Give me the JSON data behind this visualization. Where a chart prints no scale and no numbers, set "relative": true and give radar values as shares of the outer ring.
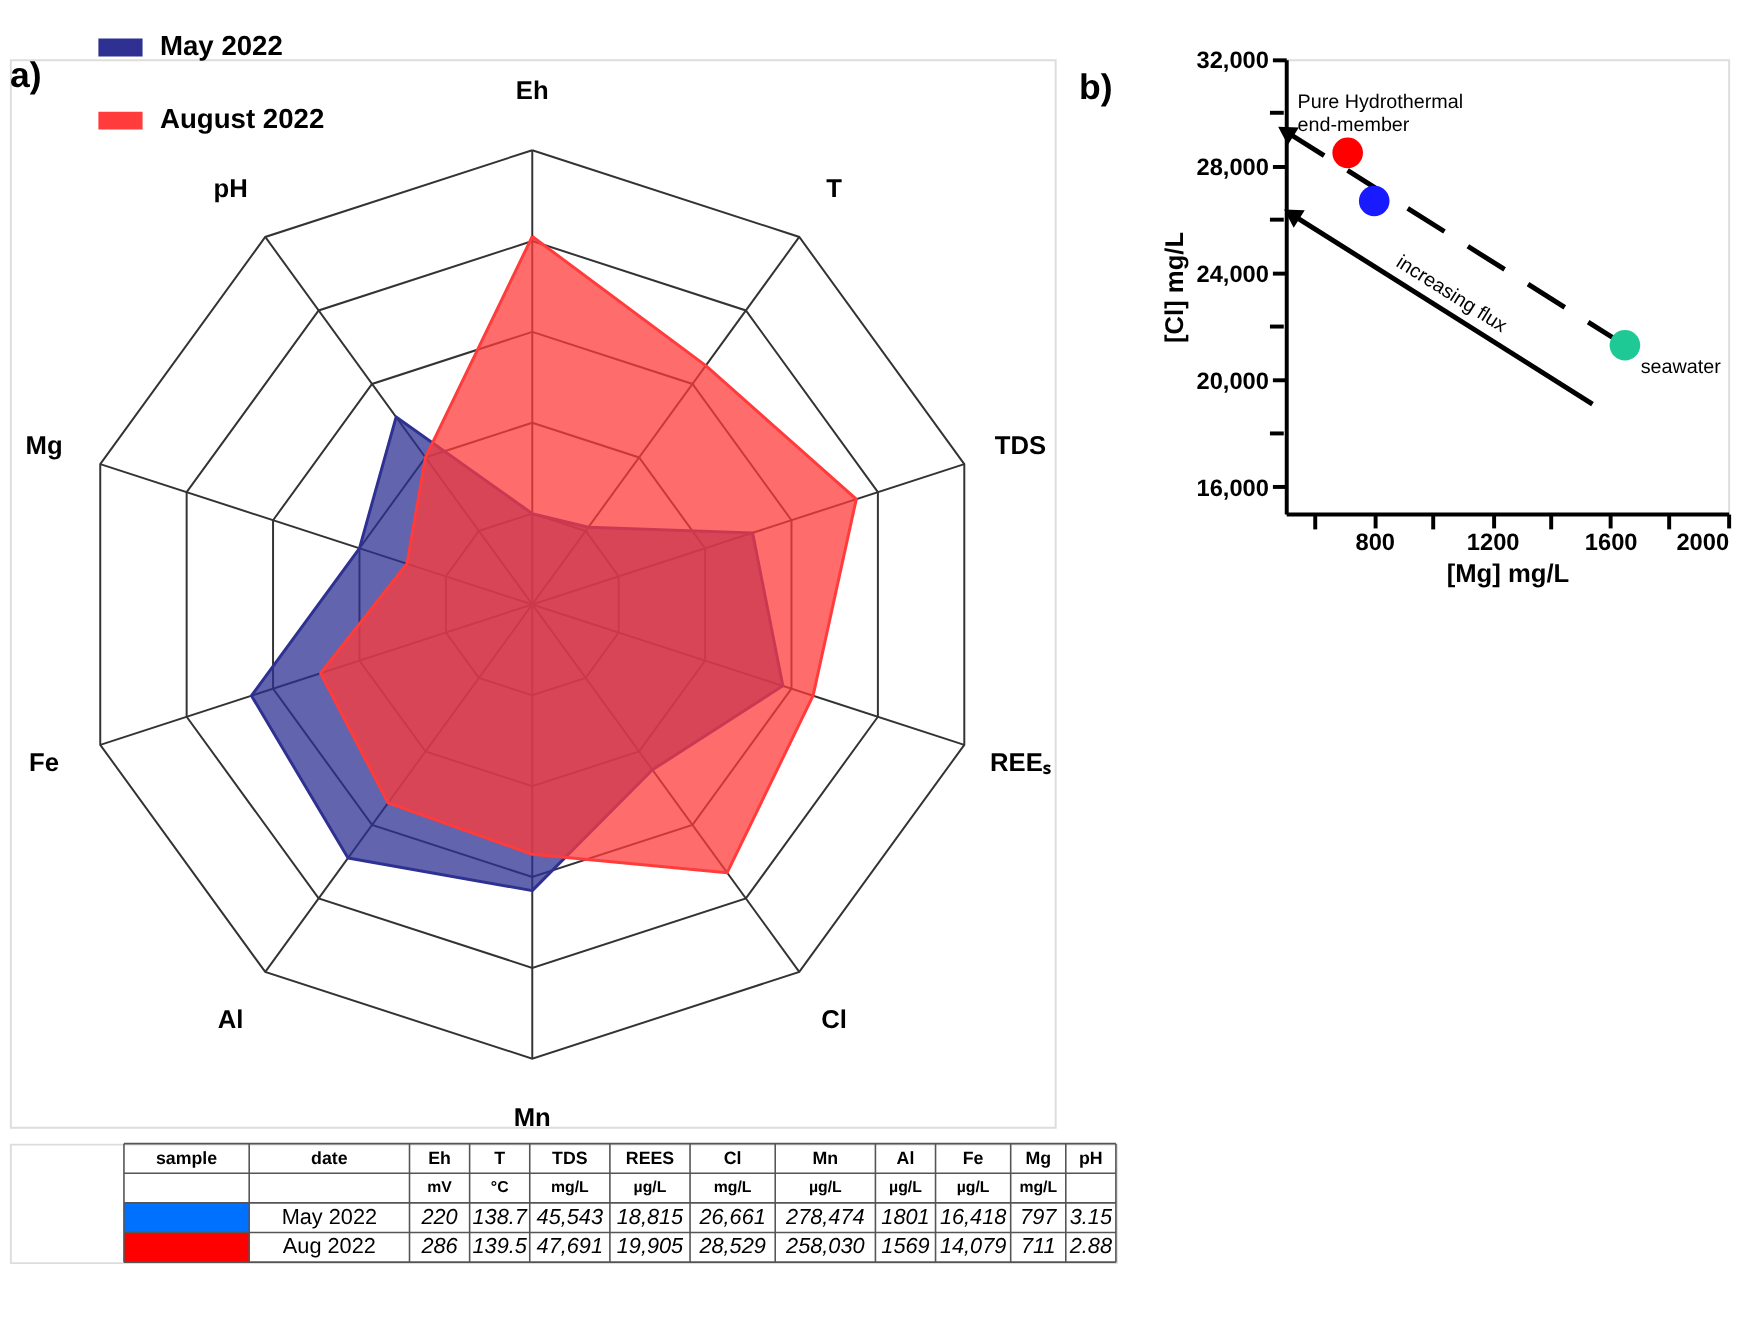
{
  "chart_data": [
    {
      "type": "radar",
      "title": "a)",
      "relative": true,
      "grid": true,
      "legend": "top left",
      "categories": [
        "Eh",
        "T",
        "TDS",
        "REEₛ",
        "Cl",
        "Mn",
        "Al",
        "Fe",
        "Mg",
        "pH"
      ],
      "series": [
        {
          "name": "May 2022",
          "color": "#2e3192",
          "values": [
            0.2,
            0.21,
            0.51,
            0.58,
            0.45,
            0.63,
            0.69,
            0.65,
            0.4,
            0.51
          ]
        },
        {
          "name": "August 2022",
          "color": "#ff3b3b",
          "values": [
            0.81,
            0.65,
            0.75,
            0.65,
            0.73,
            0.55,
            0.54,
            0.49,
            0.29,
            0.4
          ]
        }
      ]
    },
    {
      "type": "scatter",
      "title": "b)",
      "xlabel": "[Mg] mg/L",
      "ylabel": "[Cl] mg/L",
      "grid": false,
      "xlim": [
        500,
        2000
      ],
      "ylim": [
        15000,
        32000
      ],
      "xticks": [
        {
          "value": 600,
          "label": null
        },
        800,
        {
          "value": 1000,
          "label": null
        },
        1200,
        {
          "value": 1400,
          "label": null
        },
        1600,
        {
          "value": 1800,
          "label": null
        },
        2000
      ],
      "yticks": [
        {
          "value": 16000,
          "label": "16,000"
        },
        {
          "value": 18000,
          "label": null
        },
        {
          "value": 20000,
          "label": "20,000"
        },
        {
          "value": 22000,
          "label": null
        },
        {
          "value": 24000,
          "label": "24,000"
        },
        {
          "value": 26000,
          "label": null
        },
        {
          "value": 28000,
          "label": "28,000"
        },
        {
          "value": 30000,
          "label": null
        },
        {
          "value": 32000,
          "label": "32,000"
        }
      ],
      "series": [
        {
          "type": "line",
          "x": [
            1650,
            500
          ],
          "values": [
            21300,
            29300
          ],
          "color": "#000000",
          "line_style": "dashed"
        },
        {
          "type": "line",
          "x": [
            1540,
            520
          ],
          "values": [
            19100,
            26200
          ],
          "color": "#000000",
          "line_style": "solid"
        },
        {
          "type": "scatter",
          "x": [
            710,
            800,
            1650
          ],
          "values": [
            28500,
            26700,
            21300
          ],
          "colors": [
            "#ff0000",
            "#1a1aff",
            "#1fc996"
          ]
        }
      ],
      "annotations": [
        {
          "text": "Pure Hydrothermal end-member",
          "x": 500,
          "y": 29300
        },
        "increasing flux",
        {
          "text": "seawater",
          "x": 1650,
          "y": 21300
        }
      ]
    },
    {
      "type": "other",
      "categories": [
        "sample",
        "date",
        "Eh",
        "T",
        "TDS",
        "REES",
        "Cl",
        "Mn",
        "Al",
        "Fe",
        "Mg",
        "pH"
      ],
      "cell_labels": [
        [
          null,
          null,
          "mV",
          "°C",
          "mg/L",
          "µg/L",
          "mg/L",
          "µg/L",
          "µg/L",
          "µg/L",
          "mg/L",
          null
        ],
        [
          null,
          "May 2022",
          "220",
          "138.7",
          "45,543",
          "18,815",
          "26,661",
          "278,474",
          "1801",
          "16,418",
          "797",
          "3.15"
        ],
        [
          null,
          "Aug 2022",
          "286",
          "139.5",
          "47,691",
          "19,905",
          "28,529",
          "258,030",
          "1569",
          "14,079",
          "711",
          "2.88"
        ]
      ],
      "colors": [
        null,
        "#0070ff",
        "#ff0000"
      ]
    }
  ]
}
